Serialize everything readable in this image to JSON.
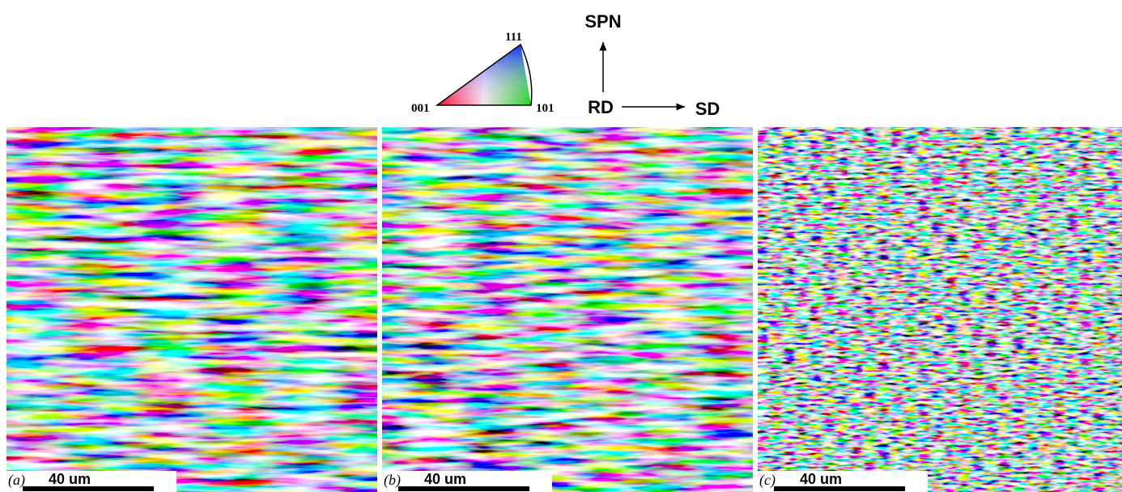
{
  "legend": {
    "corner_111": "111",
    "corner_001": "001",
    "corner_101": "101"
  },
  "axes": {
    "up": "SPN",
    "origin": "RD",
    "right": "SD"
  },
  "panels": [
    {
      "label": "(a)",
      "scale": "40 um"
    },
    {
      "label": "(b)",
      "scale": "40 um"
    },
    {
      "label": "(c)",
      "scale": "40 um"
    }
  ]
}
